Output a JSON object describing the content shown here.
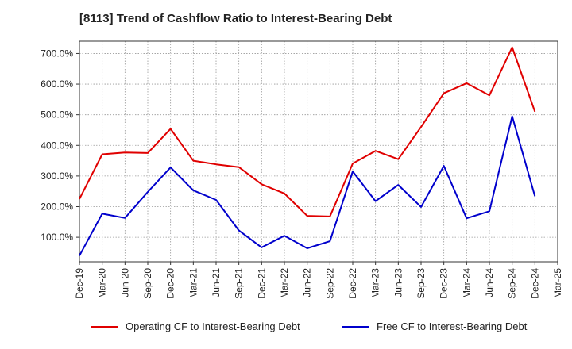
{
  "title": "[8113]  Trend of Cashflow Ratio to Interest-Bearing Debt",
  "chart_data": {
    "type": "line",
    "x": [
      "Dec-19",
      "Mar-20",
      "Jun-20",
      "Sep-20",
      "Dec-20",
      "Mar-21",
      "Jun-21",
      "Sep-21",
      "Dec-21",
      "Mar-22",
      "Jun-22",
      "Sep-22",
      "Dec-22",
      "Mar-23",
      "Jun-23",
      "Sep-23",
      "Dec-23",
      "Mar-24",
      "Jun-24",
      "Sep-24",
      "Dec-24",
      "Mar-25"
    ],
    "series": [
      {
        "name": "Operating CF to Interest-Bearing Debt",
        "color": "#e00000",
        "values": [
          225,
          371,
          377,
          375,
          454,
          350,
          338,
          329,
          273,
          243,
          170,
          168,
          341,
          382,
          355,
          460,
          570,
          603,
          563,
          720,
          510,
          null
        ]
      },
      {
        "name": "Free CF to Interest-Bearing Debt",
        "color": "#0000cc",
        "values": [
          40,
          177,
          163,
          248,
          328,
          253,
          222,
          122,
          67,
          105,
          64,
          87,
          315,
          218,
          271,
          199,
          333,
          162,
          185,
          495,
          234,
          null
        ]
      }
    ],
    "ylim": [
      20,
      740
    ],
    "yticks": [
      100,
      200,
      300,
      400,
      500,
      600,
      700
    ],
    "ytick_labels": [
      "100.0%",
      "200.0%",
      "300.0%",
      "400.0%",
      "500.0%",
      "600.0%",
      "700.0%"
    ],
    "grid": true,
    "legend_position": "bottom"
  }
}
